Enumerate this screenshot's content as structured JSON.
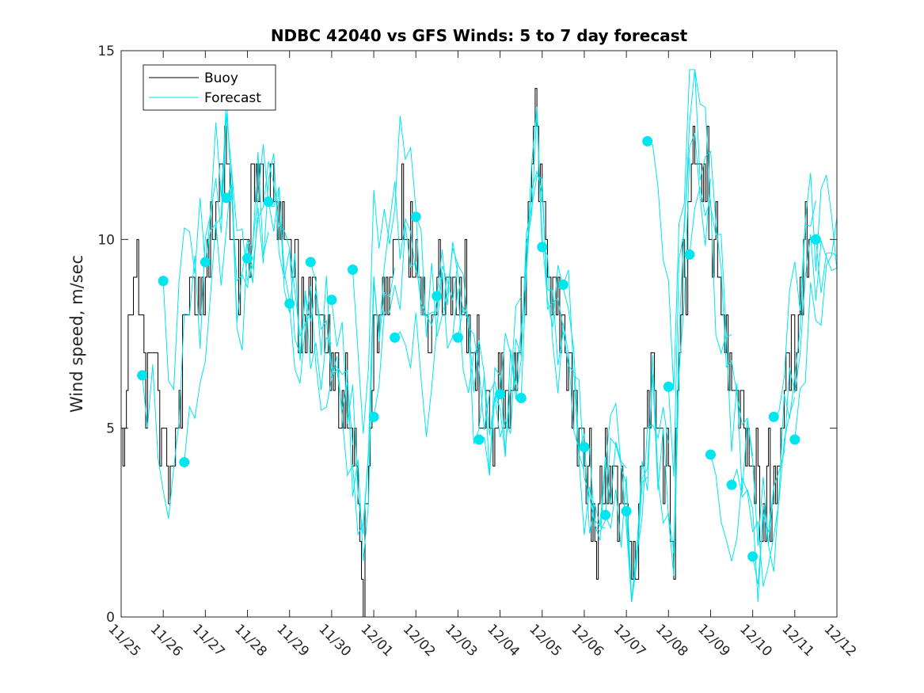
{
  "chart_data": {
    "type": "line",
    "title": "NDBC 42040 vs GFS Winds: 5 to 7 day forecast",
    "xlabel": "",
    "ylabel": "Wind speed, m/sec",
    "xlim": [
      0,
      17
    ],
    "ylim": [
      0,
      15
    ],
    "x_ticks": [
      0,
      1,
      2,
      3,
      4,
      5,
      6,
      7,
      8,
      9,
      10,
      11,
      12,
      13,
      14,
      15,
      16,
      17
    ],
    "x_tick_labels": [
      "11/25",
      "11/26",
      "11/27",
      "11/28",
      "11/29",
      "11/30",
      "12/01",
      "12/02",
      "12/03",
      "12/04",
      "12/05",
      "12/06",
      "12/07",
      "12/08",
      "12/09",
      "12/10",
      "12/11",
      "12/12"
    ],
    "y_ticks": [
      0,
      5,
      10,
      15
    ],
    "y_tick_labels": [
      "0",
      "5",
      "10",
      "15"
    ],
    "legend": {
      "location": "top-left",
      "entries": [
        {
          "label": "Buoy",
          "color": "#000000"
        },
        {
          "label": "Forecast",
          "color": "#00e5ee"
        }
      ]
    },
    "colors": {
      "buoy": "#000000",
      "forecast": "#00e5ee",
      "marker": "#00e5ee"
    },
    "buoy_anchors": [
      [
        0.0,
        3.8
      ],
      [
        0.1,
        6.0
      ],
      [
        0.25,
        8.5
      ],
      [
        0.4,
        8.0
      ],
      [
        0.6,
        7.0
      ],
      [
        0.8,
        6.5
      ],
      [
        1.0,
        5.0
      ],
      [
        1.15,
        3.5
      ],
      [
        1.3,
        5.0
      ],
      [
        1.5,
        7.5
      ],
      [
        1.7,
        8.5
      ],
      [
        2.0,
        9.0
      ],
      [
        2.2,
        10.5
      ],
      [
        2.4,
        11.5
      ],
      [
        2.5,
        12.5
      ],
      [
        2.7,
        11.0
      ],
      [
        2.8,
        9.0
      ],
      [
        3.0,
        10.0
      ],
      [
        3.2,
        11.5
      ],
      [
        3.4,
        11.0
      ],
      [
        3.6,
        12.0
      ],
      [
        3.7,
        11.0
      ],
      [
        3.9,
        10.0
      ],
      [
        4.1,
        9.0
      ],
      [
        4.3,
        8.0
      ],
      [
        4.6,
        8.0
      ],
      [
        4.8,
        7.0
      ],
      [
        5.0,
        7.0
      ],
      [
        5.2,
        6.0
      ],
      [
        5.4,
        5.0
      ],
      [
        5.6,
        3.5
      ],
      [
        5.7,
        2.0
      ],
      [
        5.8,
        1.5
      ],
      [
        5.9,
        5.0
      ],
      [
        6.0,
        7.5
      ],
      [
        6.2,
        8.0
      ],
      [
        6.4,
        9.0
      ],
      [
        6.5,
        10.5
      ],
      [
        6.7,
        10.5
      ],
      [
        6.9,
        10.0
      ],
      [
        7.1,
        9.0
      ],
      [
        7.3,
        7.0
      ],
      [
        7.5,
        8.0
      ],
      [
        7.7,
        9.0
      ],
      [
        8.0,
        8.5
      ],
      [
        8.2,
        8.0
      ],
      [
        8.4,
        6.5
      ],
      [
        8.6,
        5.5
      ],
      [
        8.8,
        5.0
      ],
      [
        9.0,
        5.5
      ],
      [
        9.2,
        6.0
      ],
      [
        9.4,
        7.0
      ],
      [
        9.6,
        9.0
      ],
      [
        9.8,
        13.0
      ],
      [
        10.0,
        11.0
      ],
      [
        10.2,
        8.5
      ],
      [
        10.4,
        8.0
      ],
      [
        10.6,
        7.0
      ],
      [
        10.8,
        6.0
      ],
      [
        11.0,
        4.0
      ],
      [
        11.2,
        2.5
      ],
      [
        11.4,
        3.0
      ],
      [
        11.6,
        4.5
      ],
      [
        11.8,
        4.0
      ],
      [
        12.0,
        3.5
      ],
      [
        12.1,
        0.3
      ],
      [
        12.2,
        1.5
      ],
      [
        12.4,
        4.0
      ],
      [
        12.6,
        6.0
      ],
      [
        12.8,
        4.5
      ],
      [
        13.0,
        3.5
      ],
      [
        13.1,
        1.5
      ],
      [
        13.2,
        6.0
      ],
      [
        13.4,
        10.0
      ],
      [
        13.6,
        12.5
      ],
      [
        13.8,
        11.5
      ],
      [
        14.0,
        10.5
      ],
      [
        14.2,
        9.0
      ],
      [
        14.4,
        7.0
      ],
      [
        14.6,
        5.5
      ],
      [
        14.8,
        5.0
      ],
      [
        15.0,
        3.5
      ],
      [
        15.2,
        2.5
      ],
      [
        15.4,
        3.0
      ],
      [
        15.6,
        4.0
      ],
      [
        15.8,
        6.0
      ],
      [
        16.0,
        7.5
      ],
      [
        16.2,
        9.0
      ],
      [
        16.4,
        10.0
      ]
    ],
    "forecast_markers": [
      [
        0.5,
        6.4
      ],
      [
        1.0,
        8.9
      ],
      [
        1.5,
        4.1
      ],
      [
        2.0,
        9.4
      ],
      [
        2.5,
        11.1
      ],
      [
        3.0,
        9.5
      ],
      [
        3.5,
        11.0
      ],
      [
        4.0,
        8.3
      ],
      [
        4.5,
        9.4
      ],
      [
        5.0,
        8.4
      ],
      [
        5.5,
        9.2
      ],
      [
        6.0,
        5.3
      ],
      [
        6.5,
        7.4
      ],
      [
        7.0,
        10.6
      ],
      [
        7.5,
        8.5
      ],
      [
        8.0,
        7.4
      ],
      [
        8.5,
        4.7
      ],
      [
        9.0,
        5.9
      ],
      [
        9.5,
        5.8
      ],
      [
        10.0,
        9.8
      ],
      [
        10.5,
        8.8
      ],
      [
        11.0,
        4.5
      ],
      [
        11.5,
        2.7
      ],
      [
        12.0,
        2.8
      ],
      [
        12.5,
        12.6
      ],
      [
        13.0,
        6.1
      ],
      [
        13.5,
        9.6
      ],
      [
        14.0,
        4.3
      ],
      [
        14.5,
        3.5
      ],
      [
        15.0,
        1.6
      ],
      [
        15.5,
        5.3
      ],
      [
        16.0,
        4.7
      ],
      [
        16.5,
        10.0
      ]
    ]
  }
}
